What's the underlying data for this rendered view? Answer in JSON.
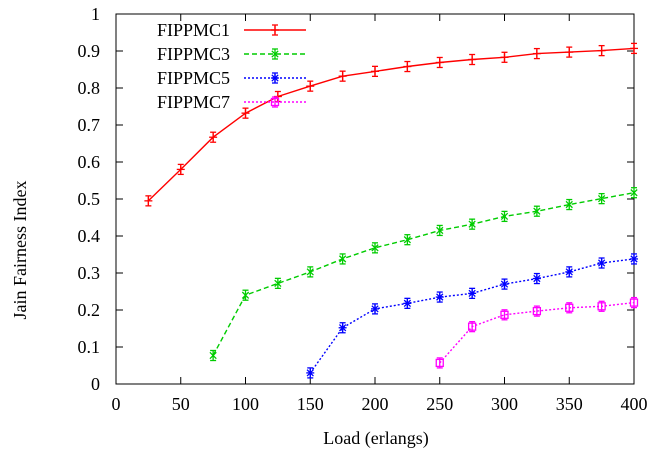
{
  "chart_data": {
    "type": "line",
    "xlabel": "Load (erlangs)",
    "ylabel": "Jain Fairness Index",
    "xlim": [
      0,
      400
    ],
    "ylim": [
      0,
      1
    ],
    "xticks": [
      0,
      50,
      100,
      150,
      200,
      250,
      300,
      350,
      400
    ],
    "yticks": [
      0,
      0.1,
      0.2,
      0.3,
      0.4,
      0.5,
      0.6,
      0.7,
      0.8,
      0.9,
      1
    ],
    "ytick_labels": [
      "0",
      "0.1",
      "0.2",
      "0.3",
      "0.4",
      "0.5",
      "0.6",
      "0.7",
      "0.8",
      "0.9",
      "1"
    ],
    "grid": false,
    "legend_position": "top-left",
    "series": [
      {
        "name": "FIPPMC1",
        "color": "#ff0000",
        "dash": "solid",
        "marker": "plus",
        "x": [
          25,
          50,
          75,
          100,
          125,
          150,
          175,
          200,
          225,
          250,
          275,
          300,
          325,
          350,
          375,
          400
        ],
        "y": [
          0.495,
          0.58,
          0.667,
          0.732,
          0.777,
          0.805,
          0.832,
          0.845,
          0.858,
          0.869,
          0.877,
          0.883,
          0.893,
          0.897,
          0.901,
          0.907
        ]
      },
      {
        "name": "FIPPMC3",
        "color": "#00cc00",
        "dash": "dashed",
        "marker": "x",
        "x": [
          75,
          100,
          125,
          150,
          175,
          200,
          225,
          250,
          275,
          300,
          325,
          350,
          375,
          400
        ],
        "y": [
          0.077,
          0.24,
          0.272,
          0.303,
          0.338,
          0.368,
          0.39,
          0.415,
          0.432,
          0.453,
          0.467,
          0.485,
          0.501,
          0.517
        ]
      },
      {
        "name": "FIPPMC5",
        "color": "#0000ff",
        "dash": "dotted",
        "marker": "star",
        "x": [
          150,
          175,
          200,
          225,
          250,
          275,
          300,
          325,
          350,
          375,
          400
        ],
        "y": [
          0.03,
          0.152,
          0.203,
          0.218,
          0.235,
          0.245,
          0.27,
          0.285,
          0.303,
          0.327,
          0.338
        ]
      },
      {
        "name": "FIPPMC7",
        "color": "#ff00ff",
        "dash": "dotted",
        "marker": "square",
        "x": [
          250,
          275,
          300,
          325,
          350,
          375,
          400
        ],
        "y": [
          0.057,
          0.155,
          0.187,
          0.197,
          0.206,
          0.21,
          0.22
        ]
      }
    ]
  }
}
